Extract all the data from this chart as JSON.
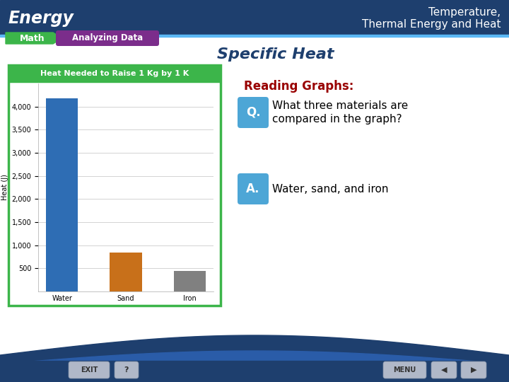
{
  "title_left": "Energy",
  "title_right": "Temperature,\nThermal Energy and Heat",
  "header_bg": "#1e3f6e",
  "header_line_color": "#5bb8f5",
  "slide_bg": "#ffffff",
  "math_label": "Math",
  "analyzing_label": "Analyzing Data",
  "math_arrow_color": "#3cb54a",
  "analyzing_bg": "#7b2d8b",
  "specific_heat_title": "Specific Heat",
  "specific_heat_color": "#1e3f6e",
  "reading_graphs_label": "Reading Graphs:",
  "reading_graphs_color": "#990000",
  "chart_title": "Heat Needed to Raise 1 Kg by 1 K",
  "chart_title_bg": "#3cb54a",
  "chart_title_color": "#ffffff",
  "chart_border_color": "#3cb54a",
  "chart_plot_bg": "#ffffff",
  "categories": [
    "Water",
    "Sand",
    "Iron"
  ],
  "values": [
    4181,
    840,
    450
  ],
  "bar_colors": [
    "#2e6db4",
    "#c8701a",
    "#808080"
  ],
  "ylabel": "Heat (J)",
  "yticks": [
    500,
    1000,
    1500,
    2000,
    2500,
    3000,
    3500,
    4000
  ],
  "ylim": [
    0,
    4500
  ],
  "q_label": "Q.",
  "q_bg": "#4da6d6",
  "a_label": "A.",
  "a_bg": "#4da6d6",
  "question_text": "What three materials are\ncompared in the graph?",
  "answer_text": "Water, sand, and iron",
  "bottom_bg": "#1e3f6e",
  "exit_label": "EXIT",
  "menu_label": "MENU",
  "bottom_wave_color1": "#1e3f6e",
  "bottom_wave_color2": "#2a5ca8"
}
